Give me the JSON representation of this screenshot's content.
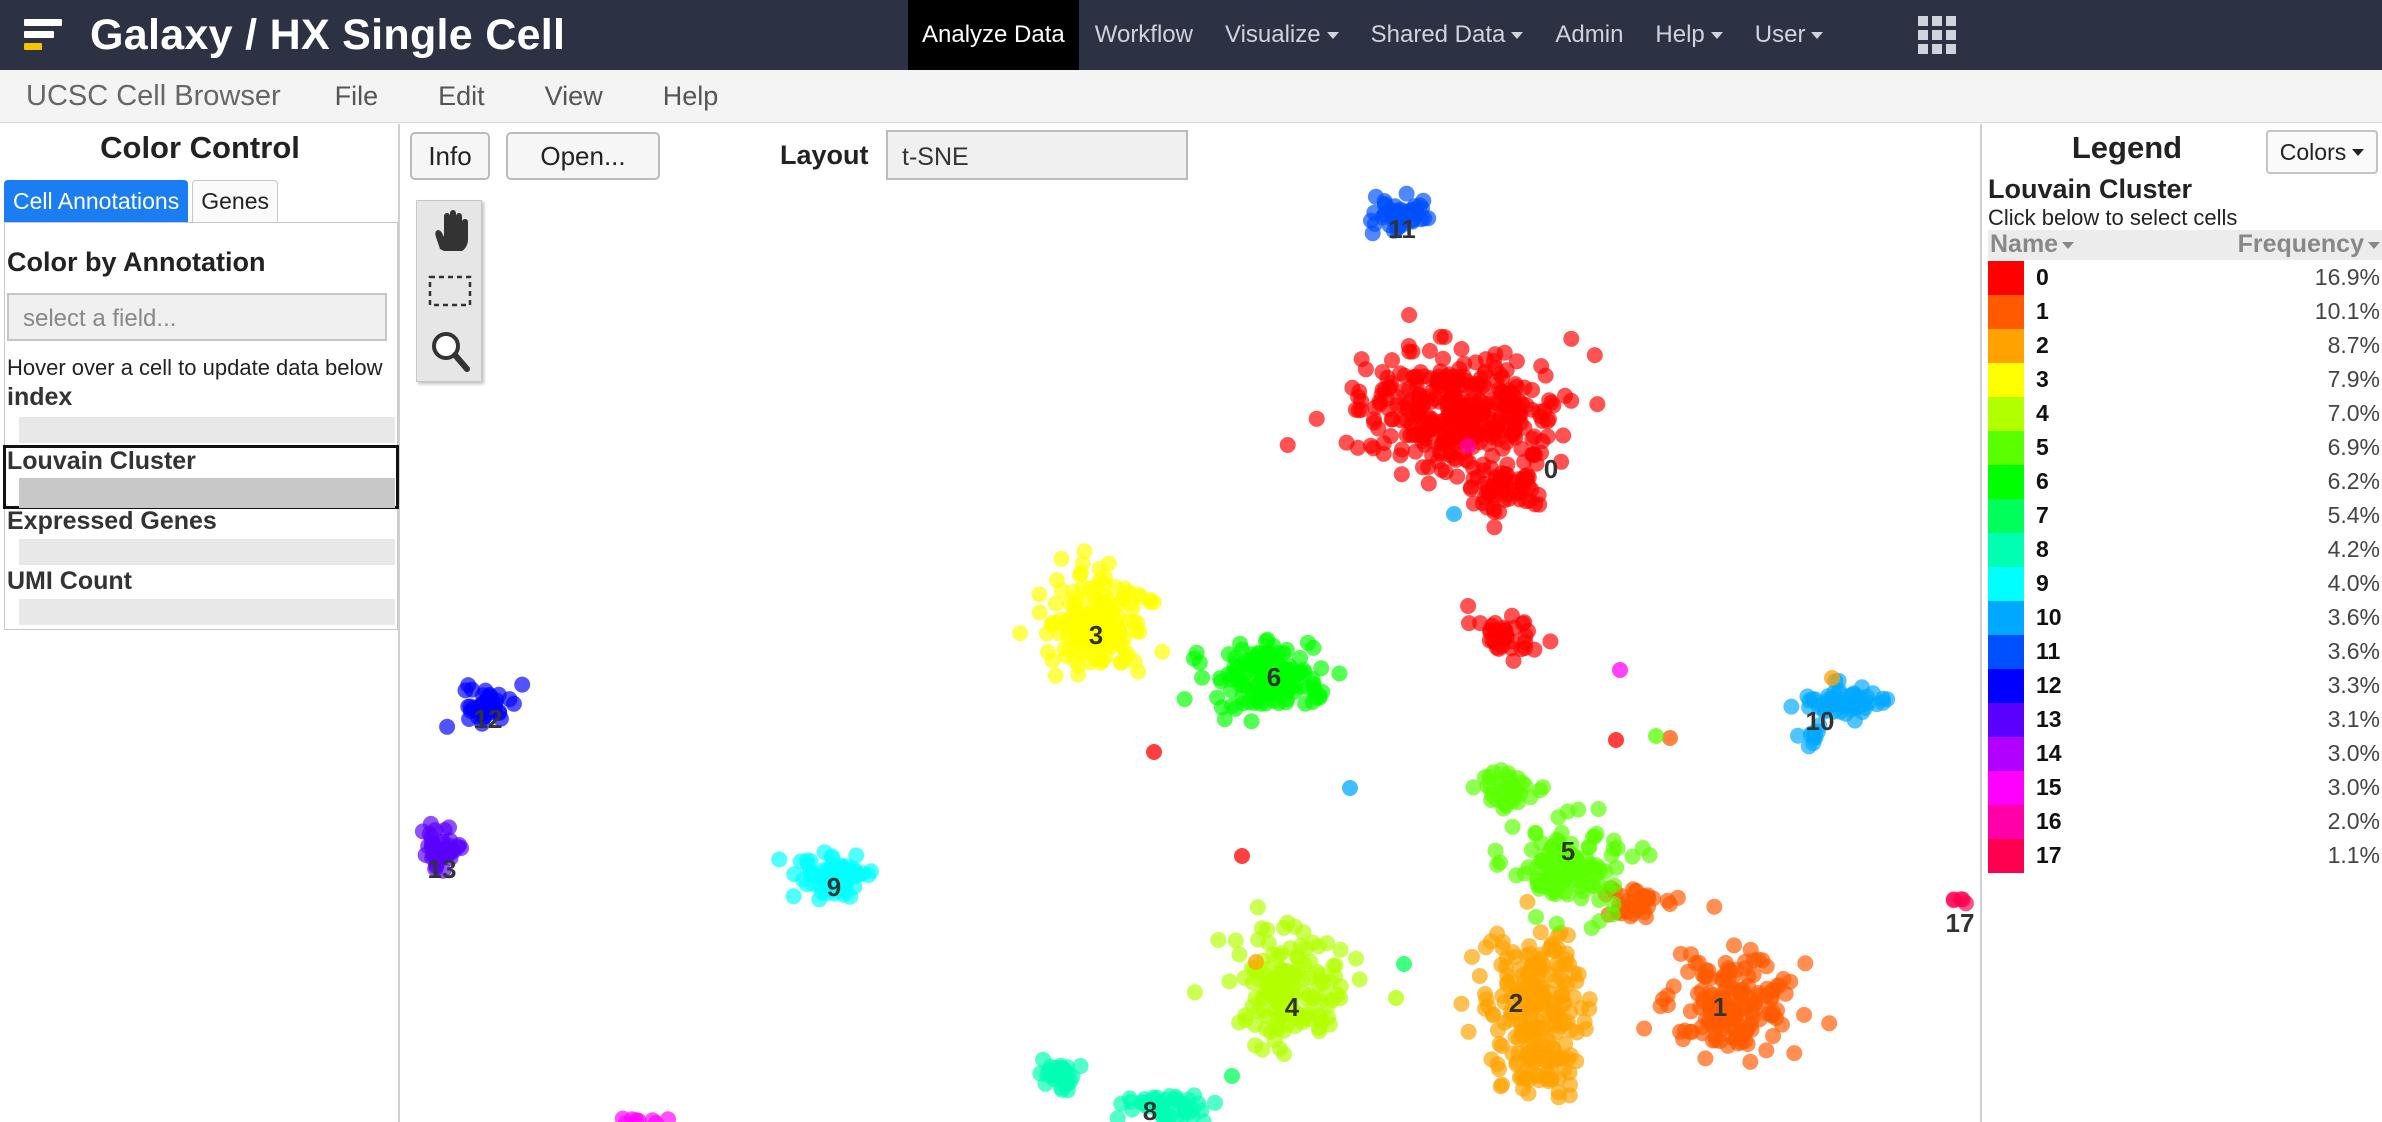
{
  "galaxy": {
    "title": "Galaxy / HX Single Cell",
    "nav": [
      {
        "label": "Analyze Data",
        "active": true,
        "dropdown": false
      },
      {
        "label": "Workflow",
        "active": false,
        "dropdown": false
      },
      {
        "label": "Visualize",
        "active": false,
        "dropdown": true
      },
      {
        "label": "Shared Data",
        "active": false,
        "dropdown": true
      },
      {
        "label": "Admin",
        "active": false,
        "dropdown": false
      },
      {
        "label": "Help",
        "active": false,
        "dropdown": true
      },
      {
        "label": "User",
        "active": false,
        "dropdown": true
      }
    ],
    "apps_icon": "grid-icon"
  },
  "menubar": {
    "title": "UCSC Cell Browser",
    "items": [
      "File",
      "Edit",
      "View",
      "Help"
    ]
  },
  "color_control": {
    "title": "Color Control",
    "tabs": [
      {
        "label": "Cell Annotations",
        "active": true
      },
      {
        "label": "Genes",
        "active": false
      }
    ],
    "color_by_label": "Color by Annotation",
    "field_placeholder": "select a field...",
    "hover_hint": "Hover over a cell to update data below",
    "annotations": [
      {
        "label": "index",
        "selected": false
      },
      {
        "label": "Louvain Cluster",
        "selected": true
      },
      {
        "label": "Expressed Genes",
        "selected": false
      },
      {
        "label": "UMI Count",
        "selected": false
      }
    ]
  },
  "toolbar": {
    "info_label": "Info",
    "open_label": "Open...",
    "layout_label": "Layout",
    "layout_value": "t-SNE",
    "tools": [
      "hand-icon",
      "marquee-select-icon",
      "zoom-icon"
    ]
  },
  "legend": {
    "title": "Legend",
    "colors_button": "Colors",
    "subtitle": "Louvain Cluster",
    "hint": "Click below to select cells",
    "name_header": "Name",
    "freq_header": "Frequency",
    "rows": [
      {
        "name": "0",
        "freq": "16.9%",
        "color": "#ff0000"
      },
      {
        "name": "1",
        "freq": "10.1%",
        "color": "#ff5a00"
      },
      {
        "name": "2",
        "freq": "8.7%",
        "color": "#ffa200"
      },
      {
        "name": "3",
        "freq": "7.9%",
        "color": "#ffff00"
      },
      {
        "name": "4",
        "freq": "7.0%",
        "color": "#b2ff00"
      },
      {
        "name": "5",
        "freq": "6.9%",
        "color": "#5aff00"
      },
      {
        "name": "6",
        "freq": "6.2%",
        "color": "#00ff00"
      },
      {
        "name": "7",
        "freq": "5.4%",
        "color": "#00ff5a"
      },
      {
        "name": "8",
        "freq": "4.2%",
        "color": "#00ffb2"
      },
      {
        "name": "9",
        "freq": "4.0%",
        "color": "#00ffff"
      },
      {
        "name": "10",
        "freq": "3.6%",
        "color": "#00a8ff"
      },
      {
        "name": "11",
        "freq": "3.6%",
        "color": "#0050ff"
      },
      {
        "name": "12",
        "freq": "3.3%",
        "color": "#0000ff"
      },
      {
        "name": "13",
        "freq": "3.1%",
        "color": "#5a00ff"
      },
      {
        "name": "14",
        "freq": "3.0%",
        "color": "#b200ff"
      },
      {
        "name": "15",
        "freq": "3.0%",
        "color": "#ff00ff"
      },
      {
        "name": "16",
        "freq": "2.0%",
        "color": "#ff00a8"
      },
      {
        "name": "17",
        "freq": "1.1%",
        "color": "#ff0050"
      }
    ]
  },
  "plot": {
    "clusters": [
      {
        "label": "0"
      },
      {
        "label": "1"
      },
      {
        "label": "2"
      },
      {
        "label": "3"
      },
      {
        "label": "4"
      },
      {
        "label": "5"
      },
      {
        "label": "6"
      },
      {
        "label": "8"
      },
      {
        "label": "9"
      },
      {
        "label": "10"
      },
      {
        "label": "11"
      },
      {
        "label": "12"
      },
      {
        "label": "13"
      },
      {
        "label": "17"
      }
    ]
  }
}
